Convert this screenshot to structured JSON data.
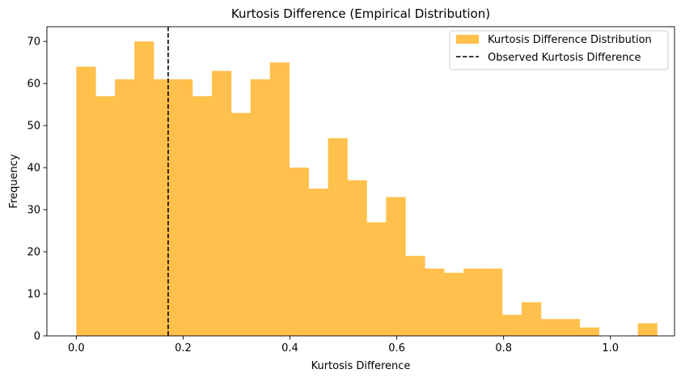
{
  "chart_data": {
    "type": "bar",
    "title": "Kurtosis Difference (Empirical Distribution)",
    "xlabel": "Kurtosis Difference",
    "ylabel": "Frequency",
    "xlim": [
      -0.055,
      1.12
    ],
    "ylim": [
      0,
      73.5
    ],
    "x_ticks": [
      0.0,
      0.2,
      0.4,
      0.6,
      0.8,
      1.0
    ],
    "x_tick_labels": [
      "0.0",
      "0.2",
      "0.4",
      "0.6",
      "0.8",
      "1.0"
    ],
    "y_ticks": [
      0,
      10,
      20,
      30,
      40,
      50,
      60,
      70
    ],
    "y_tick_labels": [
      "0",
      "10",
      "20",
      "30",
      "40",
      "50",
      "60",
      "70"
    ],
    "bin_start": 0.0,
    "bin_width": 0.03625,
    "counts": [
      64,
      57,
      61,
      70,
      61,
      61,
      57,
      63,
      53,
      61,
      65,
      40,
      35,
      47,
      37,
      27,
      33,
      19,
      16,
      15,
      16,
      16,
      5,
      8,
      4,
      4,
      2,
      0,
      0,
      3
    ],
    "bar_color": "#FFC04C",
    "observed_value": 0.172,
    "observed_color": "#000000",
    "grid": false,
    "legend_position": "top-right",
    "legend": [
      {
        "label": "Kurtosis Difference Distribution",
        "kind": "patch"
      },
      {
        "label": "Observed Kurtosis Difference",
        "kind": "dashed-line"
      }
    ]
  }
}
